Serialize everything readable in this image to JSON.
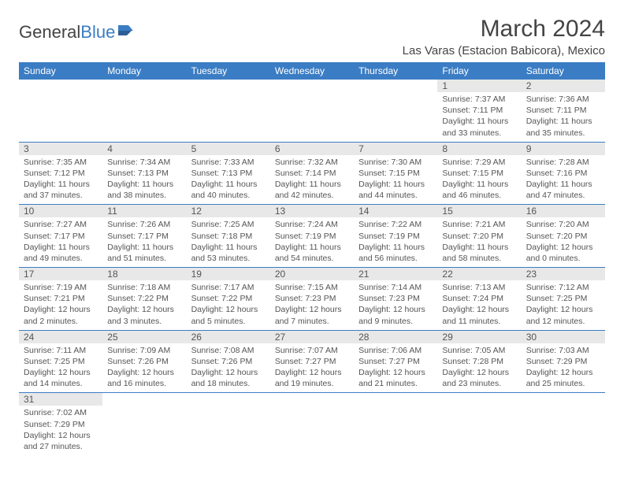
{
  "logo": {
    "text1": "General",
    "text2": "Blue"
  },
  "title": "March 2024",
  "location": "Las Varas (Estacion Babicora), Mexico",
  "weekday_headers": [
    "Sunday",
    "Monday",
    "Tuesday",
    "Wednesday",
    "Thursday",
    "Friday",
    "Saturday"
  ],
  "colors": {
    "header_bg": "#3b7dc4",
    "header_text": "#ffffff",
    "daynum_bg": "#e8e8e8",
    "text": "#555555",
    "border": "#3b7dc4"
  },
  "fonts": {
    "title_size": 30,
    "location_size": 15,
    "header_size": 12,
    "body_size": 10.5
  },
  "weeks": [
    [
      null,
      null,
      null,
      null,
      null,
      {
        "num": "1",
        "sunrise": "7:37 AM",
        "sunset": "7:11 PM",
        "daylight": "11 hours and 33 minutes."
      },
      {
        "num": "2",
        "sunrise": "7:36 AM",
        "sunset": "7:11 PM",
        "daylight": "11 hours and 35 minutes."
      }
    ],
    [
      {
        "num": "3",
        "sunrise": "7:35 AM",
        "sunset": "7:12 PM",
        "daylight": "11 hours and 37 minutes."
      },
      {
        "num": "4",
        "sunrise": "7:34 AM",
        "sunset": "7:13 PM",
        "daylight": "11 hours and 38 minutes."
      },
      {
        "num": "5",
        "sunrise": "7:33 AM",
        "sunset": "7:13 PM",
        "daylight": "11 hours and 40 minutes."
      },
      {
        "num": "6",
        "sunrise": "7:32 AM",
        "sunset": "7:14 PM",
        "daylight": "11 hours and 42 minutes."
      },
      {
        "num": "7",
        "sunrise": "7:30 AM",
        "sunset": "7:15 PM",
        "daylight": "11 hours and 44 minutes."
      },
      {
        "num": "8",
        "sunrise": "7:29 AM",
        "sunset": "7:15 PM",
        "daylight": "11 hours and 46 minutes."
      },
      {
        "num": "9",
        "sunrise": "7:28 AM",
        "sunset": "7:16 PM",
        "daylight": "11 hours and 47 minutes."
      }
    ],
    [
      {
        "num": "10",
        "sunrise": "7:27 AM",
        "sunset": "7:17 PM",
        "daylight": "11 hours and 49 minutes."
      },
      {
        "num": "11",
        "sunrise": "7:26 AM",
        "sunset": "7:17 PM",
        "daylight": "11 hours and 51 minutes."
      },
      {
        "num": "12",
        "sunrise": "7:25 AM",
        "sunset": "7:18 PM",
        "daylight": "11 hours and 53 minutes."
      },
      {
        "num": "13",
        "sunrise": "7:24 AM",
        "sunset": "7:19 PM",
        "daylight": "11 hours and 54 minutes."
      },
      {
        "num": "14",
        "sunrise": "7:22 AM",
        "sunset": "7:19 PM",
        "daylight": "11 hours and 56 minutes."
      },
      {
        "num": "15",
        "sunrise": "7:21 AM",
        "sunset": "7:20 PM",
        "daylight": "11 hours and 58 minutes."
      },
      {
        "num": "16",
        "sunrise": "7:20 AM",
        "sunset": "7:20 PM",
        "daylight": "12 hours and 0 minutes."
      }
    ],
    [
      {
        "num": "17",
        "sunrise": "7:19 AM",
        "sunset": "7:21 PM",
        "daylight": "12 hours and 2 minutes."
      },
      {
        "num": "18",
        "sunrise": "7:18 AM",
        "sunset": "7:22 PM",
        "daylight": "12 hours and 3 minutes."
      },
      {
        "num": "19",
        "sunrise": "7:17 AM",
        "sunset": "7:22 PM",
        "daylight": "12 hours and 5 minutes."
      },
      {
        "num": "20",
        "sunrise": "7:15 AM",
        "sunset": "7:23 PM",
        "daylight": "12 hours and 7 minutes."
      },
      {
        "num": "21",
        "sunrise": "7:14 AM",
        "sunset": "7:23 PM",
        "daylight": "12 hours and 9 minutes."
      },
      {
        "num": "22",
        "sunrise": "7:13 AM",
        "sunset": "7:24 PM",
        "daylight": "12 hours and 11 minutes."
      },
      {
        "num": "23",
        "sunrise": "7:12 AM",
        "sunset": "7:25 PM",
        "daylight": "12 hours and 12 minutes."
      }
    ],
    [
      {
        "num": "24",
        "sunrise": "7:11 AM",
        "sunset": "7:25 PM",
        "daylight": "12 hours and 14 minutes."
      },
      {
        "num": "25",
        "sunrise": "7:09 AM",
        "sunset": "7:26 PM",
        "daylight": "12 hours and 16 minutes."
      },
      {
        "num": "26",
        "sunrise": "7:08 AM",
        "sunset": "7:26 PM",
        "daylight": "12 hours and 18 minutes."
      },
      {
        "num": "27",
        "sunrise": "7:07 AM",
        "sunset": "7:27 PM",
        "daylight": "12 hours and 19 minutes."
      },
      {
        "num": "28",
        "sunrise": "7:06 AM",
        "sunset": "7:27 PM",
        "daylight": "12 hours and 21 minutes."
      },
      {
        "num": "29",
        "sunrise": "7:05 AM",
        "sunset": "7:28 PM",
        "daylight": "12 hours and 23 minutes."
      },
      {
        "num": "30",
        "sunrise": "7:03 AM",
        "sunset": "7:29 PM",
        "daylight": "12 hours and 25 minutes."
      }
    ],
    [
      {
        "num": "31",
        "sunrise": "7:02 AM",
        "sunset": "7:29 PM",
        "daylight": "12 hours and 27 minutes."
      },
      null,
      null,
      null,
      null,
      null,
      null
    ]
  ]
}
